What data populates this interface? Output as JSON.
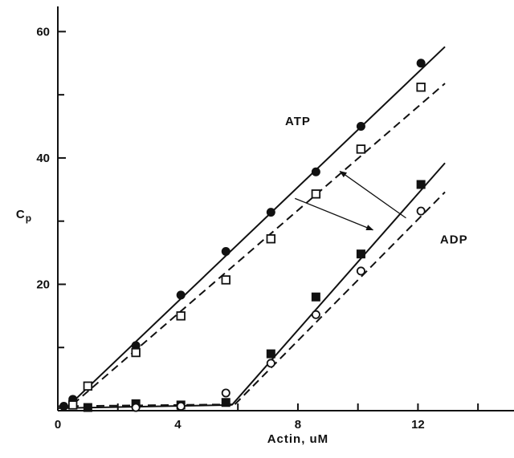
{
  "chart_data": {
    "type": "scatter",
    "title": "",
    "xlabel": "Actin, uM",
    "ylabel_main": "C",
    "ylabel_sub": "p",
    "xlim": [
      0,
      15.2
    ],
    "ylim": [
      0,
      65
    ],
    "x_ticks": [
      0,
      4,
      8,
      12
    ],
    "x_tick_labels": [
      "0",
      "4",
      "8",
      "12"
    ],
    "y_ticks": [
      20,
      40,
      60
    ],
    "y_tick_labels": [
      "20",
      "40",
      "60"
    ],
    "grid": false,
    "series": [
      {
        "marker": "filled-circle",
        "points": [
          [
            0.2,
            0.7
          ],
          [
            0.5,
            1.8
          ],
          [
            2.6,
            10.3
          ],
          [
            4.1,
            18.3
          ],
          [
            5.6,
            25.2
          ],
          [
            7.1,
            31.4
          ],
          [
            8.6,
            37.8
          ],
          [
            10.1,
            45.0
          ],
          [
            12.1,
            55.0
          ]
        ]
      },
      {
        "marker": "open-square",
        "points": [
          [
            0.5,
            0.9
          ],
          [
            1.0,
            3.9
          ],
          [
            2.6,
            9.2
          ],
          [
            4.1,
            15.0
          ],
          [
            5.6,
            20.7
          ],
          [
            7.1,
            27.2
          ],
          [
            8.6,
            34.3
          ],
          [
            10.1,
            41.4
          ],
          [
            12.1,
            51.2
          ]
        ]
      },
      {
        "marker": "filled-square",
        "points": [
          [
            1.0,
            0.5
          ],
          [
            2.6,
            1.1
          ],
          [
            4.1,
            0.9
          ],
          [
            5.6,
            1.3
          ],
          [
            7.1,
            9.0
          ],
          [
            8.6,
            18.0
          ],
          [
            10.1,
            24.8
          ],
          [
            12.1,
            35.8
          ]
        ]
      },
      {
        "marker": "open-circle",
        "points": [
          [
            2.6,
            0.5
          ],
          [
            4.1,
            0.7
          ],
          [
            5.6,
            2.8
          ],
          [
            7.1,
            7.5
          ],
          [
            8.6,
            15.2
          ],
          [
            10.1,
            22.1
          ],
          [
            12.1,
            31.6
          ]
        ]
      }
    ],
    "fit_lines": [
      {
        "style": "solid",
        "from": [
          0.3,
          0.5
        ],
        "to": [
          12.9,
          57.6
        ]
      },
      {
        "style": "dashed",
        "from": [
          0.5,
          1.0
        ],
        "to": [
          12.9,
          51.8
        ]
      },
      {
        "style": "solid",
        "from": [
          0,
          0.4
        ],
        "to": [
          5.8,
          0.9
        ]
      },
      {
        "style": "solid",
        "from": [
          5.8,
          0.9
        ],
        "to": [
          12.9,
          39.2
        ]
      },
      {
        "style": "dashed",
        "from": [
          0,
          0.7
        ],
        "to": [
          5.9,
          1.0
        ]
      },
      {
        "style": "dashed",
        "from": [
          5.9,
          1.0
        ],
        "to": [
          12.9,
          34.6
        ]
      }
    ],
    "annotations": [
      {
        "text": "ATP",
        "x": 8.0,
        "y": 45.8
      },
      {
        "text": "ADP",
        "x": 13.2,
        "y": 27.1
      }
    ],
    "arrows": [
      {
        "from": [
          11.6,
          30.5
        ],
        "to": [
          9.4,
          37.9
        ]
      },
      {
        "from": [
          7.9,
          33.6
        ],
        "to": [
          10.5,
          28.6
        ]
      }
    ]
  }
}
